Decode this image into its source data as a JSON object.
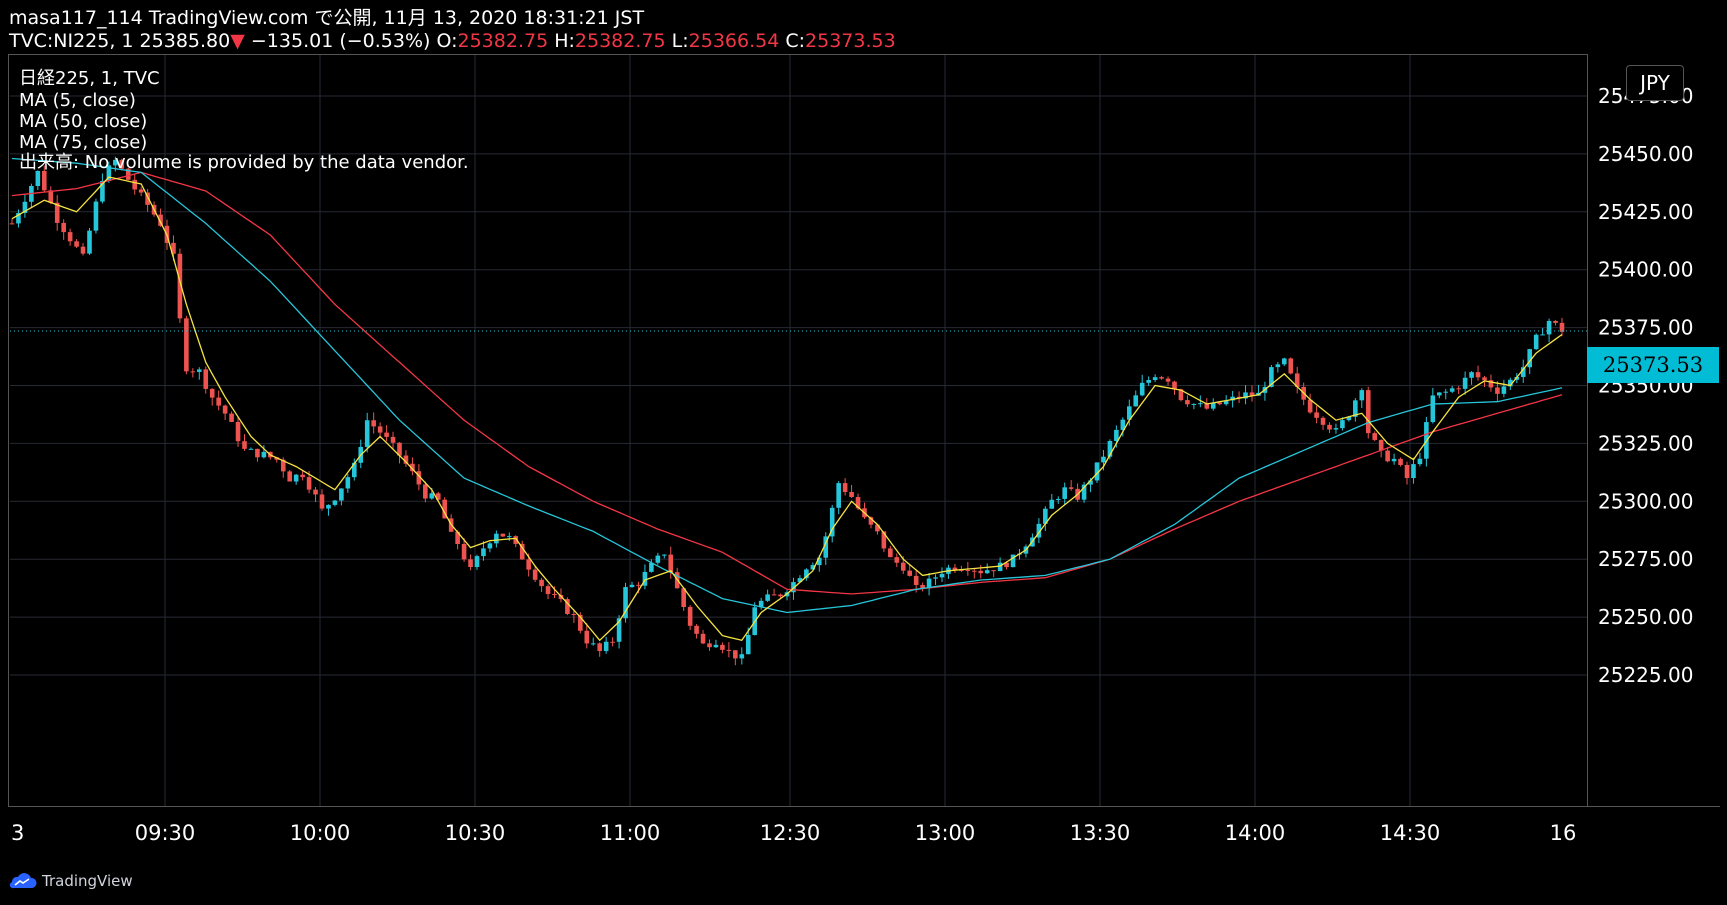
{
  "header": {
    "line1": "masa117_114 TradingView.com で公開, 11月 13, 2020 18:31:21 JST",
    "symbol_prefix": "TVC:NI225, 1 25385.80",
    "change_arrow": "▼",
    "change_text": " −135.01 (−0.53%) ",
    "o_label": "O:",
    "o_value": "25382.75",
    "h_label": "H:",
    "h_value": "25382.75",
    "l_label": "L:",
    "l_value": "25366.54",
    "c_label": "C:",
    "c_value": "25373.53"
  },
  "legend": {
    "symbol": "日経225, 1, TVC",
    "ma5": "MA (5, close)",
    "ma50": "MA (50, close)",
    "ma75": "MA (75, close)",
    "volume": "出来高: No volume is provided by the data vendor."
  },
  "currency_button": "JPY",
  "last_price_tag": "25373.53",
  "brand": "TradingView",
  "colors": {
    "background": "#000000",
    "up_candle": "#26c6da",
    "down_candle": "#ef5350",
    "ma5": "#f5e342",
    "ma50": "#26c6da",
    "ma75": "#f23645",
    "grid": "#262a33",
    "axis_text": "#ffffff"
  },
  "chart_data": {
    "type": "candlestick",
    "interval": "1 minute",
    "ylim": [
      25205,
      25490
    ],
    "y_ticks": [
      25225,
      25250,
      25275,
      25300,
      25325,
      25350,
      25375,
      25400,
      25425,
      25450,
      25475
    ],
    "y_tick_labels": [
      "25225.00",
      "25250.00",
      "25275.00",
      "25300.00",
      "25325.00",
      "25350.00",
      "25375.00",
      "25400.00",
      "25425.00",
      "25450.00",
      "25475.00"
    ],
    "x_tick_labels": [
      "3",
      "09:30",
      "10:00",
      "10:30",
      "11:00",
      "12:30",
      "13:00",
      "13:30",
      "14:00",
      "14:30",
      "16"
    ],
    "last_price": 25373.53,
    "series": [
      {
        "name": "MA (5, close)",
        "key": "ma5"
      },
      {
        "name": "MA (50, close)",
        "key": "ma50"
      },
      {
        "name": "MA (75, close)",
        "key": "ma75"
      }
    ],
    "price_path": [
      [
        0,
        25420
      ],
      [
        4,
        25442
      ],
      [
        7,
        25422
      ],
      [
        11,
        25405
      ],
      [
        14,
        25440
      ],
      [
        16,
        25447
      ],
      [
        19,
        25435
      ],
      [
        21,
        25428
      ],
      [
        23,
        25420
      ],
      [
        25,
        25405
      ],
      [
        26,
        25378
      ],
      [
        27,
        25358
      ],
      [
        29,
        25356
      ],
      [
        31,
        25345
      ],
      [
        33,
        25338
      ],
      [
        36,
        25322
      ],
      [
        39,
        25320
      ],
      [
        41,
        25318
      ],
      [
        43,
        25310
      ],
      [
        45,
        25312
      ],
      [
        47,
        25302
      ],
      [
        48,
        25296
      ],
      [
        50,
        25302
      ],
      [
        53,
        25315
      ],
      [
        55,
        25335
      ],
      [
        57,
        25330
      ],
      [
        60,
        25320
      ],
      [
        62,
        25312
      ],
      [
        64,
        25303
      ],
      [
        66,
        25300
      ],
      [
        68,
        25285
      ],
      [
        69,
        25282
      ],
      [
        71,
        25270
      ],
      [
        73,
        25280
      ],
      [
        75,
        25287
      ],
      [
        77,
        25284
      ],
      [
        79,
        25276
      ],
      [
        81,
        25268
      ],
      [
        83,
        25260
      ],
      [
        85,
        25256
      ],
      [
        87,
        25250
      ],
      [
        89,
        25240
      ],
      [
        91,
        25235
      ],
      [
        93,
        25240
      ],
      [
        95,
        25262
      ],
      [
        97,
        25265
      ],
      [
        99,
        25272
      ],
      [
        101,
        25278
      ],
      [
        103,
        25262
      ],
      [
        105,
        25247
      ],
      [
        107,
        25238
      ],
      [
        109,
        25240
      ],
      [
        111,
        25235
      ],
      [
        113,
        25232
      ],
      [
        114,
        25242
      ],
      [
        115,
        25255
      ],
      [
        117,
        25258
      ],
      [
        119,
        25260
      ],
      [
        121,
        25265
      ],
      [
        123,
        25272
      ],
      [
        125,
        25276
      ],
      [
        126,
        25285
      ],
      [
        128,
        25308
      ],
      [
        130,
        25302
      ],
      [
        132,
        25292
      ],
      [
        134,
        25286
      ],
      [
        136,
        25275
      ],
      [
        138,
        25272
      ],
      [
        140,
        25262
      ],
      [
        142,
        25265
      ],
      [
        144,
        25270
      ],
      [
        146,
        25272
      ],
      [
        148,
        25272
      ],
      [
        150,
        25270
      ],
      [
        153,
        25272
      ],
      [
        155,
        25275
      ],
      [
        157,
        25282
      ],
      [
        159,
        25290
      ],
      [
        161,
        25300
      ],
      [
        163,
        25305
      ],
      [
        165,
        25302
      ],
      [
        167,
        25310
      ],
      [
        169,
        25320
      ],
      [
        171,
        25330
      ],
      [
        173,
        25340
      ],
      [
        175,
        25350
      ],
      [
        177,
        25355
      ],
      [
        179,
        25353
      ],
      [
        181,
        25345
      ],
      [
        183,
        25342
      ],
      [
        185,
        25340
      ],
      [
        187,
        25342
      ],
      [
        189,
        25344
      ],
      [
        191,
        25346
      ],
      [
        193,
        25346
      ],
      [
        195,
        25356
      ],
      [
        197,
        25360
      ],
      [
        199,
        25348
      ],
      [
        201,
        25340
      ],
      [
        203,
        25335
      ],
      [
        205,
        25330
      ],
      [
        207,
        25338
      ],
      [
        209,
        25350
      ],
      [
        210,
        25330
      ],
      [
        212,
        25320
      ],
      [
        214,
        25318
      ],
      [
        216,
        25310
      ],
      [
        218,
        25320
      ],
      [
        220,
        25345
      ],
      [
        222,
        25347
      ],
      [
        224,
        25350
      ],
      [
        226,
        25355
      ],
      [
        228,
        25352
      ],
      [
        230,
        25348
      ],
      [
        232,
        25352
      ],
      [
        234,
        25358
      ],
      [
        236,
        25370
      ],
      [
        238,
        25378
      ],
      [
        240,
        25374
      ]
    ],
    "ma5_path": [
      [
        0,
        25422
      ],
      [
        5,
        25430
      ],
      [
        10,
        25425
      ],
      [
        15,
        25440
      ],
      [
        20,
        25437
      ],
      [
        24,
        25415
      ],
      [
        27,
        25385
      ],
      [
        30,
        25360
      ],
      [
        33,
        25345
      ],
      [
        37,
        25328
      ],
      [
        40,
        25320
      ],
      [
        44,
        25315
      ],
      [
        47,
        25310
      ],
      [
        50,
        25305
      ],
      [
        54,
        25320
      ],
      [
        57,
        25328
      ],
      [
        61,
        25317
      ],
      [
        65,
        25305
      ],
      [
        68,
        25290
      ],
      [
        71,
        25280
      ],
      [
        74,
        25283
      ],
      [
        78,
        25284
      ],
      [
        81,
        25272
      ],
      [
        84,
        25262
      ],
      [
        88,
        25250
      ],
      [
        91,
        25240
      ],
      [
        94,
        25248
      ],
      [
        98,
        25266
      ],
      [
        102,
        25270
      ],
      [
        106,
        25255
      ],
      [
        110,
        25242
      ],
      [
        113,
        25240
      ],
      [
        116,
        25252
      ],
      [
        120,
        25260
      ],
      [
        124,
        25270
      ],
      [
        127,
        25288
      ],
      [
        130,
        25300
      ],
      [
        134,
        25290
      ],
      [
        138,
        25275
      ],
      [
        141,
        25268
      ],
      [
        145,
        25270
      ],
      [
        149,
        25271
      ],
      [
        153,
        25272
      ],
      [
        157,
        25279
      ],
      [
        161,
        25294
      ],
      [
        165,
        25303
      ],
      [
        169,
        25315
      ],
      [
        173,
        25335
      ],
      [
        177,
        25350
      ],
      [
        181,
        25348
      ],
      [
        185,
        25342
      ],
      [
        189,
        25344
      ],
      [
        193,
        25346
      ],
      [
        197,
        25355
      ],
      [
        201,
        25344
      ],
      [
        205,
        25335
      ],
      [
        209,
        25338
      ],
      [
        213,
        25325
      ],
      [
        217,
        25318
      ],
      [
        220,
        25330
      ],
      [
        224,
        25345
      ],
      [
        228,
        25352
      ],
      [
        232,
        25350
      ],
      [
        236,
        25364
      ],
      [
        240,
        25372
      ]
    ],
    "ma50_path": [
      [
        0,
        25448
      ],
      [
        10,
        25446
      ],
      [
        20,
        25442
      ],
      [
        30,
        25420
      ],
      [
        40,
        25395
      ],
      [
        50,
        25365
      ],
      [
        60,
        25335
      ],
      [
        70,
        25310
      ],
      [
        80,
        25298
      ],
      [
        90,
        25287
      ],
      [
        100,
        25272
      ],
      [
        110,
        25258
      ],
      [
        120,
        25252
      ],
      [
        130,
        25255
      ],
      [
        140,
        25262
      ],
      [
        150,
        25266
      ],
      [
        160,
        25268
      ],
      [
        170,
        25275
      ],
      [
        180,
        25290
      ],
      [
        190,
        25310
      ],
      [
        200,
        25322
      ],
      [
        210,
        25334
      ],
      [
        220,
        25342
      ],
      [
        230,
        25343
      ],
      [
        240,
        25349
      ]
    ],
    "ma75_path": [
      [
        0,
        25432
      ],
      [
        10,
        25435
      ],
      [
        20,
        25442
      ],
      [
        30,
        25434
      ],
      [
        40,
        25415
      ],
      [
        50,
        25385
      ],
      [
        60,
        25360
      ],
      [
        70,
        25335
      ],
      [
        80,
        25315
      ],
      [
        90,
        25300
      ],
      [
        100,
        25288
      ],
      [
        110,
        25278
      ],
      [
        120,
        25262
      ],
      [
        130,
        25260
      ],
      [
        140,
        25262
      ],
      [
        150,
        25265
      ],
      [
        160,
        25267
      ],
      [
        170,
        25275
      ],
      [
        180,
        25288
      ],
      [
        190,
        25300
      ],
      [
        200,
        25310
      ],
      [
        210,
        25320
      ],
      [
        220,
        25330
      ],
      [
        230,
        25338
      ],
      [
        240,
        25346
      ]
    ]
  }
}
